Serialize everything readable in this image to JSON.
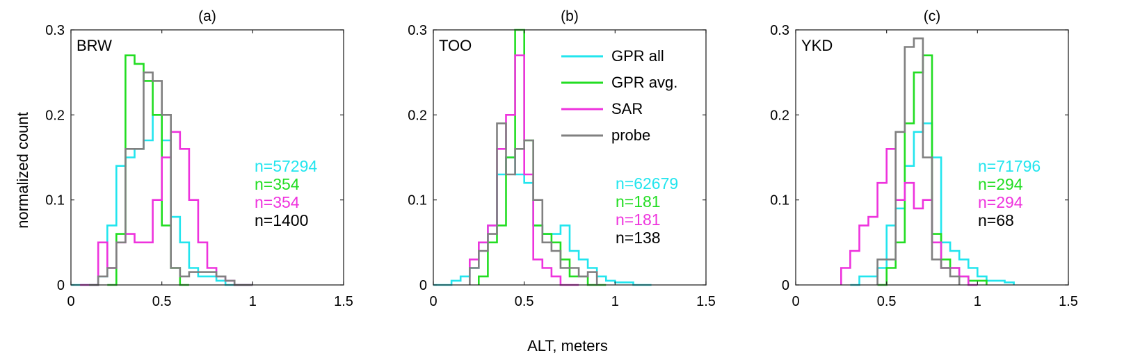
{
  "figure": {
    "ylabel": "normalized count",
    "xlabel": "ALT, meters"
  },
  "legend": {
    "placement": "panel-b top-right",
    "entries": [
      {
        "label": "GPR all",
        "color": "#22e5ee"
      },
      {
        "label": "GPR avg.",
        "color": "#22dd22"
      },
      {
        "label": "SAR",
        "color": "#ee33dd"
      },
      {
        "label": "probe",
        "color": "#808080"
      }
    ]
  },
  "chart_data": [
    {
      "type": "histogram",
      "title": "(a)",
      "site": "BRW",
      "xlim": [
        0,
        1.5
      ],
      "ylim": [
        0,
        0.3
      ],
      "xticks": [
        "0",
        "0.5",
        "1",
        "1.5"
      ],
      "yticks": [
        "0",
        "0.1",
        "0.2",
        "0.3"
      ],
      "counts": [
        {
          "text": "n=57294",
          "color": "#22e5ee"
        },
        {
          "text": "n=354",
          "color": "#22dd22"
        },
        {
          "text": "n=354",
          "color": "#ee33dd"
        },
        {
          "text": "n=1400",
          "color": "#000000"
        }
      ],
      "series": [
        {
          "name": "GPR all",
          "color": "#22e5ee",
          "edges": [
            0.0,
            0.1,
            0.15,
            0.2,
            0.25,
            0.3,
            0.35,
            0.4,
            0.45,
            0.5,
            0.55,
            0.6,
            0.65,
            0.7,
            0.75,
            0.8,
            0.85,
            0.9,
            1.0
          ],
          "values": [
            0.0,
            0.0,
            0.01,
            0.07,
            0.14,
            0.15,
            0.16,
            0.17,
            0.2,
            0.17,
            0.08,
            0.05,
            0.02,
            0.01,
            0.01,
            0.005,
            0.0,
            0.0
          ]
        },
        {
          "name": "GPR avg.",
          "color": "#22dd22",
          "edges": [
            0.2,
            0.25,
            0.3,
            0.35,
            0.4,
            0.45,
            0.5,
            0.55,
            0.6,
            0.65
          ],
          "values": [
            0.0,
            0.06,
            0.27,
            0.26,
            0.24,
            0.2,
            0.07,
            0.02,
            0.0
          ]
        },
        {
          "name": "SAR",
          "color": "#ee33dd",
          "edges": [
            0.05,
            0.15,
            0.2,
            0.25,
            0.3,
            0.35,
            0.4,
            0.45,
            0.5,
            0.55,
            0.6,
            0.65,
            0.7,
            0.75,
            0.8,
            0.85,
            0.9,
            1.0
          ],
          "values": [
            0.0,
            0.05,
            0.02,
            0.05,
            0.06,
            0.05,
            0.05,
            0.1,
            0.15,
            0.18,
            0.16,
            0.1,
            0.05,
            0.02,
            0.01,
            0.005,
            0.0
          ]
        },
        {
          "name": "probe",
          "color": "#808080",
          "edges": [
            0.1,
            0.15,
            0.2,
            0.25,
            0.3,
            0.35,
            0.4,
            0.45,
            0.5,
            0.55,
            0.6,
            0.65,
            0.7,
            0.75,
            0.8,
            0.85,
            0.9,
            1.0
          ],
          "values": [
            0.0,
            0.01,
            0.02,
            0.05,
            0.16,
            0.16,
            0.25,
            0.24,
            0.2,
            0.02,
            0.01,
            0.015,
            0.015,
            0.015,
            0.01,
            0.005,
            0.0
          ]
        }
      ]
    },
    {
      "type": "histogram",
      "title": "(b)",
      "site": "TOO",
      "xlim": [
        0,
        1.5
      ],
      "ylim": [
        0,
        0.3
      ],
      "xticks": [
        "0",
        "0.5",
        "1",
        "1.5"
      ],
      "yticks": [
        "0",
        "0.1",
        "0.2",
        "0.3"
      ],
      "counts": [
        {
          "text": "n=62679",
          "color": "#22e5ee"
        },
        {
          "text": "n=181",
          "color": "#22dd22"
        },
        {
          "text": "n=181",
          "color": "#ee33dd"
        },
        {
          "text": "n=138",
          "color": "#000000"
        }
      ],
      "series": [
        {
          "name": "GPR all",
          "color": "#22e5ee",
          "edges": [
            0.0,
            0.1,
            0.15,
            0.2,
            0.25,
            0.3,
            0.35,
            0.4,
            0.45,
            0.5,
            0.55,
            0.6,
            0.65,
            0.7,
            0.75,
            0.8,
            0.85,
            0.9,
            0.95,
            1.0,
            1.1,
            1.2
          ],
          "values": [
            0.0,
            0.005,
            0.01,
            0.02,
            0.05,
            0.07,
            0.13,
            0.15,
            0.13,
            0.12,
            0.07,
            0.06,
            0.06,
            0.07,
            0.04,
            0.03,
            0.02,
            0.01,
            0.005,
            0.003,
            0.0
          ]
        },
        {
          "name": "GPR avg.",
          "color": "#22dd22",
          "edges": [
            0.25,
            0.3,
            0.35,
            0.4,
            0.45,
            0.5,
            0.55,
            0.6,
            0.65,
            0.7,
            0.75,
            0.8,
            0.85,
            0.9,
            0.95
          ],
          "values": [
            0.01,
            0.05,
            0.07,
            0.15,
            0.3,
            0.17,
            0.07,
            0.06,
            0.05,
            0.03,
            0.01,
            0.01,
            0.0,
            0.0
          ]
        },
        {
          "name": "SAR",
          "color": "#ee33dd",
          "edges": [
            0.2,
            0.25,
            0.3,
            0.35,
            0.4,
            0.45,
            0.5,
            0.55,
            0.6,
            0.65,
            0.7,
            0.75,
            0.8
          ],
          "values": [
            0.03,
            0.05,
            0.07,
            0.16,
            0.2,
            0.27,
            0.13,
            0.03,
            0.02,
            0.01,
            0.0,
            0.0
          ]
        },
        {
          "name": "probe",
          "color": "#808080",
          "edges": [
            0.2,
            0.25,
            0.3,
            0.35,
            0.4,
            0.45,
            0.5,
            0.55,
            0.6,
            0.65,
            0.7,
            0.75,
            0.8,
            0.85,
            0.9
          ],
          "values": [
            0.02,
            0.04,
            0.06,
            0.19,
            0.13,
            0.16,
            0.17,
            0.1,
            0.05,
            0.04,
            0.02,
            0.02,
            0.01,
            0.015
          ]
        }
      ]
    },
    {
      "type": "histogram",
      "title": "(c)",
      "site": "YKD",
      "xlim": [
        0,
        1.5
      ],
      "ylim": [
        0,
        0.3
      ],
      "xticks": [
        "0",
        "0.5",
        "1",
        "1.5"
      ],
      "yticks": [
        "0",
        "0.1",
        "0.2",
        "0.3"
      ],
      "counts": [
        {
          "text": "n=71796",
          "color": "#22e5ee"
        },
        {
          "text": "n=294",
          "color": "#22dd22"
        },
        {
          "text": "n=294",
          "color": "#ee33dd"
        },
        {
          "text": "n=68",
          "color": "#000000"
        }
      ],
      "series": [
        {
          "name": "GPR all",
          "color": "#22e5ee",
          "edges": [
            0.3,
            0.35,
            0.4,
            0.45,
            0.5,
            0.55,
            0.6,
            0.65,
            0.7,
            0.75,
            0.8,
            0.85,
            0.9,
            0.95,
            1.0,
            1.05,
            1.1,
            1.15,
            1.2
          ],
          "values": [
            0.0,
            0.01,
            0.01,
            0.02,
            0.07,
            0.09,
            0.14,
            0.18,
            0.19,
            0.15,
            0.05,
            0.04,
            0.03,
            0.02,
            0.01,
            0.005,
            0.005,
            0.003
          ]
        },
        {
          "name": "GPR avg.",
          "color": "#22dd22",
          "edges": [
            0.45,
            0.5,
            0.55,
            0.6,
            0.65,
            0.7,
            0.75,
            0.8,
            0.85,
            0.9,
            0.95,
            1.0,
            1.05
          ],
          "values": [
            0.0,
            0.02,
            0.05,
            0.19,
            0.25,
            0.27,
            0.06,
            0.03,
            0.02,
            0.01,
            0.005,
            0.005
          ]
        },
        {
          "name": "SAR",
          "color": "#ee33dd",
          "edges": [
            0.25,
            0.3,
            0.35,
            0.4,
            0.45,
            0.5,
            0.55,
            0.6,
            0.65,
            0.7,
            0.75,
            0.8,
            0.85,
            0.9,
            0.95,
            1.0
          ],
          "values": [
            0.02,
            0.04,
            0.07,
            0.08,
            0.12,
            0.16,
            0.1,
            0.12,
            0.09,
            0.1,
            0.05,
            0.02,
            0.02,
            0.01,
            0.0
          ]
        },
        {
          "name": "probe",
          "color": "#808080",
          "edges": [
            0.45,
            0.5,
            0.55,
            0.6,
            0.65,
            0.7,
            0.75,
            0.8,
            0.85,
            0.9
          ],
          "values": [
            0.03,
            0.03,
            0.18,
            0.28,
            0.29,
            0.15,
            0.03,
            0.02,
            0.01
          ]
        }
      ]
    }
  ]
}
